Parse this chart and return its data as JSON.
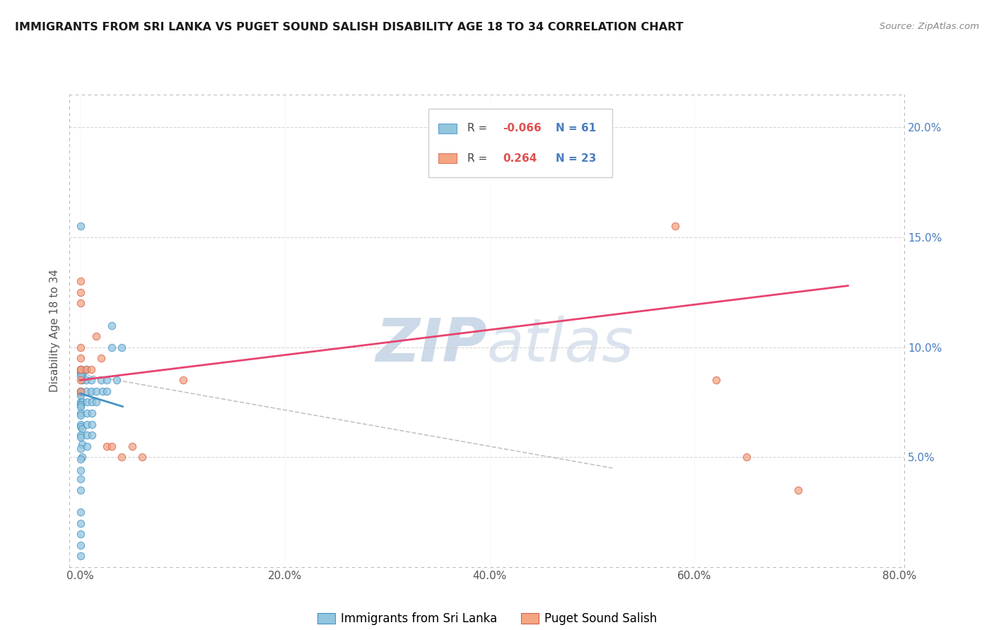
{
  "title": "IMMIGRANTS FROM SRI LANKA VS PUGET SOUND SALISH DISABILITY AGE 18 TO 34 CORRELATION CHART",
  "source": "Source: ZipAtlas.com",
  "ylabel_label": "Disability Age 18 to 34",
  "legend_label1": "Immigrants from Sri Lanka",
  "legend_label2": "Puget Sound Salish",
  "R1": -0.066,
  "N1": 61,
  "R2": 0.264,
  "N2": 23,
  "xlim": [
    -0.01,
    0.805
  ],
  "ylim": [
    0.0,
    0.215
  ],
  "xtick_labels": [
    "0.0%",
    "",
    "20.0%",
    "",
    "40.0%",
    "",
    "60.0%",
    "",
    "80.0%"
  ],
  "xtick_values": [
    0.0,
    0.1,
    0.2,
    0.3,
    0.4,
    0.5,
    0.6,
    0.7,
    0.8
  ],
  "xtick_display": [
    "0.0%",
    "20.0%",
    "40.0%",
    "60.0%",
    "80.0%"
  ],
  "xtick_display_vals": [
    0.0,
    0.2,
    0.4,
    0.6,
    0.8
  ],
  "ytick_labels": [
    "5.0%",
    "10.0%",
    "15.0%",
    "20.0%"
  ],
  "ytick_values": [
    0.05,
    0.1,
    0.15,
    0.2
  ],
  "color_blue": "#92c5de",
  "color_blue_edge": "#4292c6",
  "color_pink": "#f4a582",
  "color_pink_edge": "#d6604d",
  "color_blue_line": "#4393c3",
  "color_pink_line": "#e8436e",
  "color_dashed": "#aaaaaa",
  "watermark_color": "#ccd9e8",
  "blue_x": [
    0.002,
    0.001,
    0.001,
    0.002,
    0.003,
    0.001,
    0.002,
    0.001,
    0.001,
    0.001,
    0.001,
    0.001,
    0.001,
    0.002,
    0.001,
    0.001,
    0.001,
    0.001,
    0.001,
    0.001,
    0.001,
    0.002,
    0.001,
    0.001,
    0.002,
    0.001,
    0.002,
    0.001,
    0.001,
    0.001,
    0.006,
    0.006,
    0.006,
    0.007,
    0.007,
    0.007,
    0.007,
    0.007,
    0.011,
    0.011,
    0.012,
    0.012,
    0.012,
    0.012,
    0.016,
    0.016,
    0.021,
    0.022,
    0.026,
    0.026,
    0.031,
    0.031,
    0.036,
    0.041,
    0.001,
    0.001,
    0.001,
    0.001,
    0.001,
    0.001,
    0.001
  ],
  "blue_y": [
    0.085,
    0.09,
    0.089,
    0.088,
    0.089,
    0.088,
    0.088,
    0.087,
    0.075,
    0.08,
    0.08,
    0.079,
    0.078,
    0.075,
    0.074,
    0.074,
    0.073,
    0.07,
    0.069,
    0.065,
    0.064,
    0.063,
    0.06,
    0.059,
    0.056,
    0.054,
    0.05,
    0.049,
    0.044,
    0.04,
    0.09,
    0.085,
    0.08,
    0.075,
    0.07,
    0.065,
    0.06,
    0.055,
    0.085,
    0.08,
    0.075,
    0.07,
    0.065,
    0.06,
    0.08,
    0.075,
    0.085,
    0.08,
    0.085,
    0.08,
    0.11,
    0.1,
    0.085,
    0.1,
    0.155,
    0.035,
    0.025,
    0.02,
    0.015,
    0.01,
    0.005
  ],
  "pink_x": [
    0.001,
    0.001,
    0.001,
    0.001,
    0.001,
    0.001,
    0.001,
    0.001,
    0.001,
    0.006,
    0.011,
    0.016,
    0.021,
    0.026,
    0.031,
    0.041,
    0.051,
    0.061,
    0.101,
    0.581,
    0.621,
    0.651,
    0.701
  ],
  "pink_y": [
    0.13,
    0.125,
    0.12,
    0.1,
    0.095,
    0.09,
    0.09,
    0.085,
    0.08,
    0.09,
    0.09,
    0.105,
    0.095,
    0.055,
    0.055,
    0.05,
    0.055,
    0.05,
    0.085,
    0.155,
    0.085,
    0.05,
    0.035
  ],
  "blue_line_x": [
    0.0,
    0.042
  ],
  "blue_line_y": [
    0.079,
    0.073
  ],
  "pink_line_x": [
    0.0,
    0.75
  ],
  "pink_line_y": [
    0.085,
    0.128
  ],
  "dashed_line_x": [
    0.0,
    0.52
  ],
  "dashed_line_y": [
    0.088,
    0.045
  ]
}
